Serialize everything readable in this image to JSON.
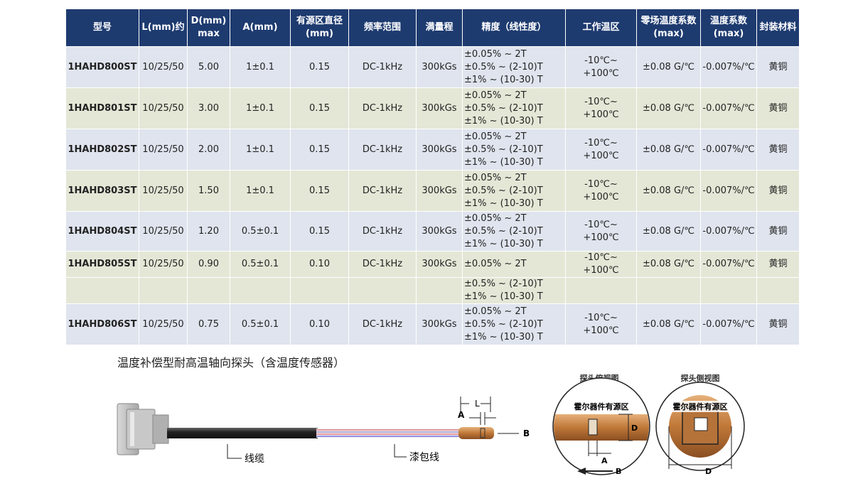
{
  "table": {
    "header": [
      [
        "型号"
      ],
      [
        "L(mm)约"
      ],
      [
        "D(mm)",
        "max"
      ],
      [
        "A(mm)"
      ],
      [
        "有源区直径",
        "(mm)"
      ],
      [
        "频率范围"
      ],
      [
        "满量程"
      ],
      [
        "精度（线性度）"
      ],
      [
        "工作温区"
      ],
      [
        "零场温度系数",
        "(max)"
      ],
      [
        "温度系数",
        "(max)"
      ],
      [
        "封装材料"
      ]
    ],
    "rows": [
      {
        "model": "1HAHD800ST",
        "l": "10/25/50",
        "d": "5.00",
        "a": "1±0.1",
        "active": "0.15",
        "freq": "DC-1kHz",
        "range": "300kGs",
        "precision": [
          "±0.05% ~ 2T",
          "±0.5% ~ (2-10)T",
          "±1% ~ (10-30) T"
        ],
        "temp": "-10℃~ +100℃",
        "zero_coef": "±0.08 G/℃",
        "coef": "-0.007%/℃",
        "material": "黄铜"
      },
      {
        "model": "1HAHD801ST",
        "l": "10/25/50",
        "d": "3.00",
        "a": "1±0.1",
        "active": "0.15",
        "freq": "DC-1kHz",
        "range": "300kGs",
        "precision": [
          "±0.05% ~ 2T",
          "±0.5% ~ (2-10)T",
          "±1% ~ (10-30) T"
        ],
        "temp": "-10℃~ +100℃",
        "zero_coef": "±0.08 G/℃",
        "coef": "-0.007%/℃",
        "material": "黄铜"
      },
      {
        "model": "1HAHD802ST",
        "l": "10/25/50",
        "d": "2.00",
        "a": "1±0.1",
        "active": "0.15",
        "freq": "DC-1kHz",
        "range": "300kGs",
        "precision": [
          "±0.05% ~ 2T",
          "±0.5% ~ (2-10)T",
          "±1% ~ (10-30) T"
        ],
        "temp": "-10℃~ +100℃",
        "zero_coef": "±0.08 G/℃",
        "coef": "-0.007%/℃",
        "material": "黄铜"
      },
      {
        "model": "1HAHD803ST",
        "l": "10/25/50",
        "d": "1.50",
        "a": "1±0.1",
        "active": "0.15",
        "freq": "DC-1kHz",
        "range": "300kGs",
        "precision": [
          "±0.05% ~ 2T",
          "±0.5% ~ (2-10)T",
          "±1% ~ (10-30) T"
        ],
        "temp": "-10℃~ +100℃",
        "zero_coef": "±0.08 G/℃",
        "coef": "-0.007%/℃",
        "material": "黄铜"
      },
      {
        "model": "1HAHD804ST",
        "l": "10/25/50",
        "d": "1.20",
        "a": "0.5±0.1",
        "active": "0.15",
        "freq": "DC-1kHz",
        "range": "300kGs",
        "precision": [
          "±0.05% ~ 2T",
          "±0.5% ~ (2-10)T",
          "±1% ~ (10-30) T"
        ],
        "temp": "-10℃~ +100℃",
        "zero_coef": "±0.08 G/℃",
        "coef": "-0.007%/℃",
        "material": "黄铜"
      },
      {
        "model": "1HAHD805ST",
        "l": "10/25/50",
        "d": "0.90",
        "a": "0.5±0.1",
        "active": "0.10",
        "freq": "DC-1kHz",
        "range": "300kGs",
        "precision": [
          "±0.05% ~ 2T"
        ],
        "temp": "-10℃~ +100℃",
        "zero_coef": "±0.08 G/℃",
        "coef": "-0.007%/℃",
        "material": "黄铜"
      },
      {
        "precision": [
          "±0.5% ~ (2-10)T",
          "±1% ~ (10-30) T"
        ]
      },
      {
        "model": "1HAHD806ST",
        "l": "10/25/50",
        "d": "0.75",
        "a": "0.5±0.1",
        "active": "0.10",
        "freq": "DC-1kHz",
        "range": "300kGs",
        "precision": [
          "±0.05% ~ 2T",
          "±0.5% ~ (2-10)T",
          "±1% ~ (10-30) T"
        ],
        "temp": "-10℃~ +100℃",
        "zero_coef": "±0.08 G/℃",
        "coef": "-0.007%/℃",
        "material": "黄铜"
      }
    ]
  },
  "diagram": {
    "title": "温度补偿型耐高温轴向探头（含温度传感器）",
    "cable": "线缆",
    "wire": "漆包线",
    "dim_l": "L",
    "dim_a": "A",
    "dim_b": "B",
    "top_view": {
      "title": "探头俯视图",
      "label": "霍尔器件有源区",
      "d": "D",
      "a": "A",
      "b": "B"
    },
    "side_view": {
      "title": "探头侧视图",
      "label": "霍尔器件有源区",
      "d": "D"
    }
  }
}
